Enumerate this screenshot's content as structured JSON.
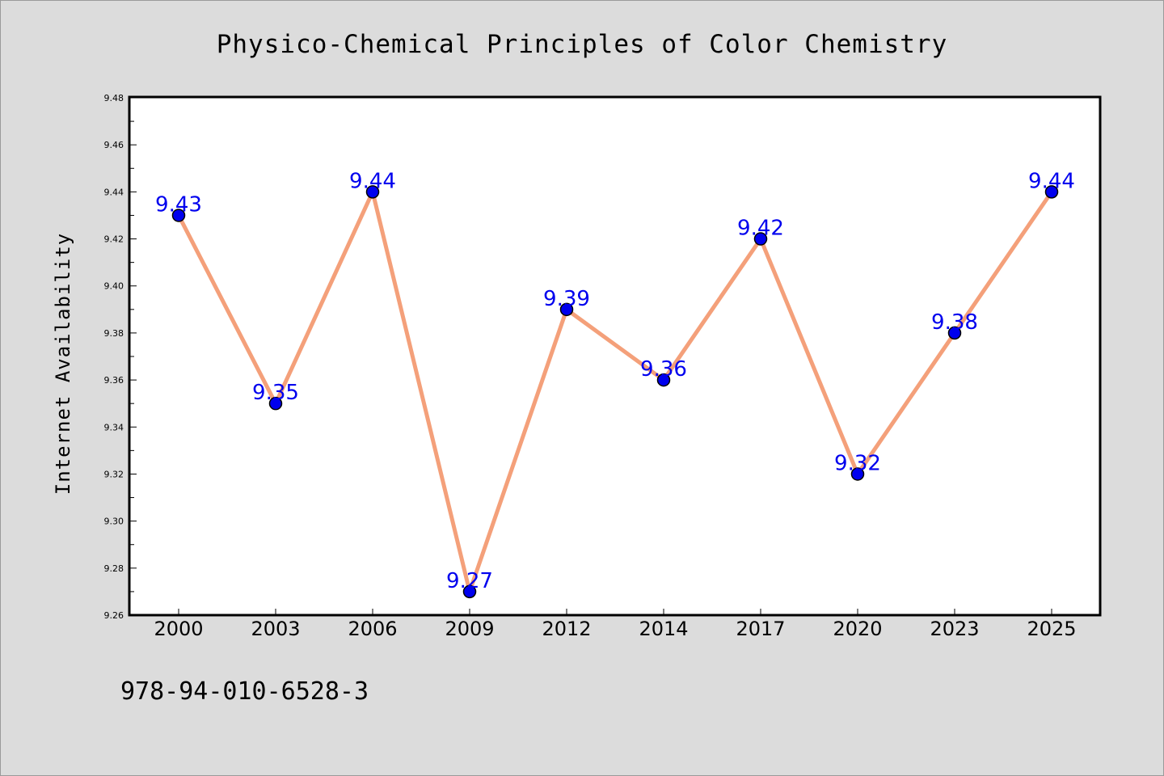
{
  "chart_data": {
    "type": "line",
    "title": "Physico-Chemical Principles of Color Chemistry",
    "xlabel": "",
    "ylabel": "Internet Availability",
    "categories": [
      "2000",
      "2003",
      "2006",
      "2009",
      "2012",
      "2014",
      "2017",
      "2020",
      "2023",
      "2025"
    ],
    "series": [
      {
        "values": [
          9.43,
          9.35,
          9.44,
          9.27,
          9.39,
          9.36,
          9.42,
          9.32,
          9.38,
          9.44
        ]
      }
    ],
    "data_labels": [
      "9.43",
      "9.35",
      "9.44",
      "9.27",
      "9.39",
      "9.36",
      "9.42",
      "9.32",
      "9.38",
      "9.44"
    ],
    "ylim": [
      9.26,
      9.48
    ],
    "yticks": [
      "9.26",
      "9.28",
      "9.30",
      "9.32",
      "9.34",
      "9.36",
      "9.38",
      "9.40",
      "9.42",
      "9.44",
      "9.46",
      "9.48"
    ],
    "grid": false,
    "legend": "none",
    "colors": {
      "line": "#f4a07a",
      "marker": "#0000ee",
      "label": "#0000ee",
      "background": "#dcdcdc",
      "plot_background": "#ffffff"
    }
  },
  "footer": {
    "isbn": "978-94-010-6528-3"
  }
}
